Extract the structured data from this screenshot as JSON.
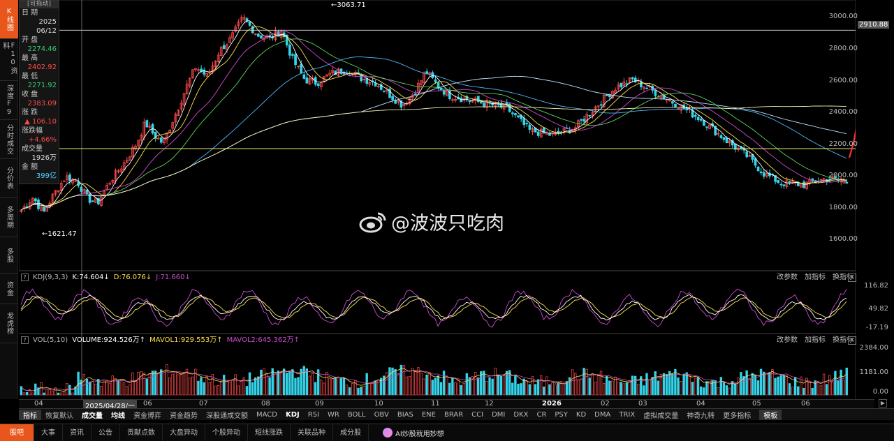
{
  "sidebar": [
    {
      "label": "K线图",
      "active": true
    },
    {
      "label": "F10资料",
      "active": false
    },
    {
      "label": "深度F9",
      "active": false
    },
    {
      "label": "分时成交",
      "active": false
    },
    {
      "label": "分价表",
      "active": false
    },
    {
      "label": "多周期",
      "active": false
    },
    {
      "label": "多股",
      "active": false
    },
    {
      "label": "资金",
      "active": false
    },
    {
      "label": "龙虎榜",
      "active": false
    }
  ],
  "info": {
    "header": "[可拖动]",
    "date_label": "日 期",
    "year": "2025",
    "date": "06/12",
    "open_label": "开 盘",
    "open": "2274.46",
    "high_label": "最 高",
    "high": "2402.92",
    "low_label": "最 低",
    "low": "2271.92",
    "close_label": "收 盘",
    "close": "2383.09",
    "change_label": "涨 跌",
    "change": "▲ 106.10",
    "pct_label": "涨跌幅",
    "pct": "+4.66%",
    "vol_label": "成交量",
    "vol": "1926万",
    "amt_label": "金 额",
    "amt": "399亿"
  },
  "main_chart": {
    "high_marker": "←3063.71",
    "low_marker": "←1621.47",
    "axis": [
      "3000.00",
      "2800.00",
      "2600.00",
      "2400.00",
      "2200.00",
      "2000.00",
      "1800.00",
      "1600.00"
    ],
    "price_box": "2910.88"
  },
  "kdj": {
    "name": "KDJ(9,3,3)",
    "k": "K:74.604↓",
    "d": "D:76.076↓",
    "j": "J:71.660↓",
    "axis": [
      "116.82",
      "49.82",
      "-17.19"
    ]
  },
  "vol": {
    "name": "VOL(5,10)",
    "volume": "VOLUME:924.526万↑",
    "mavol1": "MAVOL1:929.553万↑",
    "mavol2": "MAVOL2:645.362万↑",
    "axis": [
      "2384.00",
      "1181.00",
      "0.00"
    ]
  },
  "panel_controls": {
    "params": "改参数",
    "add": "加指标",
    "change": "换指标",
    "close": "✕"
  },
  "dates": [
    "04",
    "2025/04/28/一",
    "06",
    "07",
    "08",
    "09",
    "10",
    "11",
    "12",
    "2026",
    "02",
    "03",
    "04",
    "05",
    "06"
  ],
  "tabs": [
    "指标",
    "恢复默认",
    "成交量",
    "均线",
    "资金博弈",
    "资金趋势",
    "深股通成交额",
    "MACD",
    "KDJ",
    "RSI",
    "WR",
    "BOLL",
    "OBV",
    "BIAS",
    "ENE",
    "BRAR",
    "CCI",
    "DMI",
    "DKX",
    "CR",
    "PSY",
    "KD",
    "DMA",
    "TRIX",
    "虚拟成交量",
    "神奇九转",
    "更多指标",
    "模板"
  ],
  "bottom_tabs": [
    "股吧",
    "大事",
    "资讯",
    "公告",
    "贡献点数",
    "大盘异动",
    "个股异动",
    "短线涨跌",
    "关联品种",
    "成分股"
  ],
  "ai_label": "AI炒股就用妙想",
  "watermark": "@波波只吃肉",
  "colors": {
    "up": "#ff4b4b",
    "down": "#35d3e8",
    "accent": "#e9561c",
    "k": "#ffffff",
    "d": "#ffe04b",
    "j": "#d04bd0"
  }
}
